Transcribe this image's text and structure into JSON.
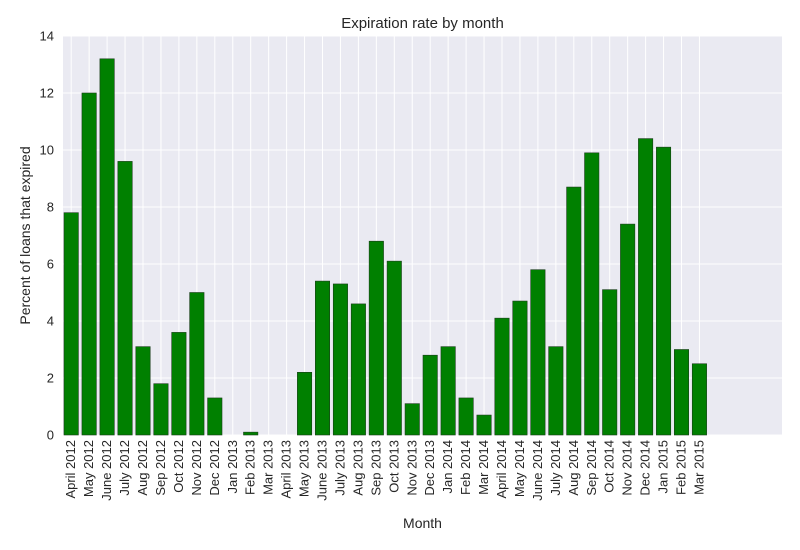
{
  "chart_data": {
    "type": "bar",
    "title": "Expiration rate by month",
    "xlabel": "Month",
    "ylabel": "Percent of loans that expired",
    "ylim": [
      0,
      14
    ],
    "yticks": [
      0,
      2,
      4,
      6,
      8,
      10,
      12,
      14
    ],
    "grid": true,
    "bar_color": "#008000",
    "bar_edge_color": "#1a3d1a",
    "plot_background": "#eaeaf2",
    "grid_color": "#ffffff",
    "categories": [
      "April 2012",
      "May 2012",
      "June 2012",
      "July 2012",
      "Aug 2012",
      "Sep 2012",
      "Oct 2012",
      "Nov 2012",
      "Dec 2012",
      "Jan 2013",
      "Feb 2013",
      "Mar 2013",
      "April 2013",
      "May 2013",
      "June 2013",
      "July 2013",
      "Aug 2013",
      "Sep 2013",
      "Oct 2013",
      "Nov 2013",
      "Dec 2013",
      "Jan 2014",
      "Feb 2014",
      "Mar 2014",
      "April 2014",
      "May 2014",
      "June 2014",
      "July 2014",
      "Aug 2014",
      "Sep 2014",
      "Oct 2014",
      "Nov 2014",
      "Dec 2014",
      "Jan 2015",
      "Feb 2015",
      "Mar 2015"
    ],
    "values": [
      7.8,
      12.0,
      13.2,
      9.6,
      3.1,
      1.8,
      3.6,
      5.0,
      1.3,
      0.0,
      0.1,
      0.0,
      0.0,
      2.2,
      5.4,
      5.3,
      4.6,
      6.8,
      6.1,
      1.1,
      2.8,
      3.1,
      1.3,
      0.7,
      4.1,
      4.7,
      5.8,
      3.1,
      8.7,
      9.9,
      5.1,
      7.4,
      10.4,
      10.1,
      3.0,
      2.5
    ]
  }
}
